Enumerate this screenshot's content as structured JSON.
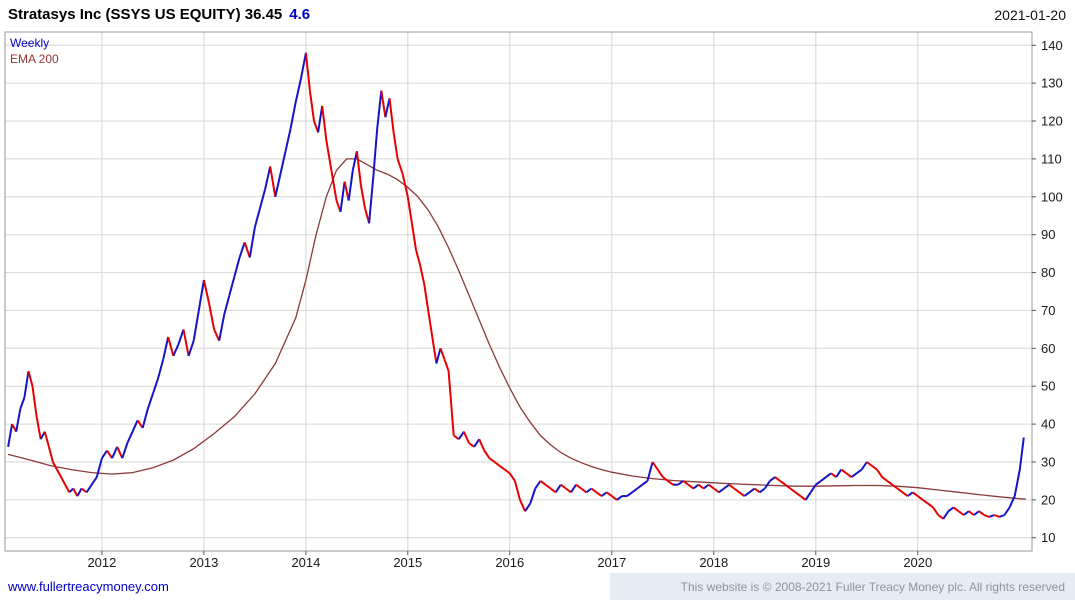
{
  "header": {
    "title": "Stratasys Inc (SSYS US EQUITY) 36.45",
    "change": "4.6",
    "date": "2021-01-20"
  },
  "legend": {
    "weekly": "Weekly",
    "ema": "EMA 200"
  },
  "footer": {
    "link": "www.fullertreacymoney.com",
    "copyright": "This website is © 2008-2021 Fuller Treacy Money plc. All rights reserved"
  },
  "colors": {
    "up": "#1414c8",
    "down": "#e80000",
    "ema": "#8b3a3a",
    "grid": "#d6d6d6",
    "border": "#999999",
    "tick": "#555555",
    "axis_text": "#1a1a1a",
    "legend_weekly": "#0000cc",
    "legend_ema": "#993333",
    "change": "#0000cc",
    "link": "#0000cc",
    "footer_text": "#8f959e",
    "footer_bg": "#e6ecf4"
  },
  "chart_data": {
    "type": "line",
    "title": "Stratasys Inc (SSYS US EQUITY) weekly price with 200-period EMA",
    "last_price": 36.45,
    "change": 4.6,
    "timeframe": "Weekly",
    "xlim": [
      2011.05,
      2021.12
    ],
    "ylim": [
      6.5,
      143.5
    ],
    "x_ticks": [
      2012,
      2013,
      2014,
      2015,
      2016,
      2017,
      2018,
      2019,
      2020
    ],
    "y_ticks": [
      10,
      20,
      30,
      40,
      50,
      60,
      70,
      80,
      90,
      100,
      110,
      120,
      130,
      140
    ],
    "grid": true,
    "legend_position": "top-left",
    "series": [
      {
        "name": "Weekly",
        "x": [
          2011.08,
          2011.12,
          2011.16,
          2011.2,
          2011.24,
          2011.28,
          2011.32,
          2011.36,
          2011.4,
          2011.44,
          2011.48,
          2011.52,
          2011.56,
          2011.6,
          2011.64,
          2011.68,
          2011.72,
          2011.76,
          2011.8,
          2011.85,
          2011.9,
          2011.95,
          2012.0,
          2012.05,
          2012.1,
          2012.15,
          2012.2,
          2012.25,
          2012.3,
          2012.35,
          2012.4,
          2012.45,
          2012.5,
          2012.55,
          2012.6,
          2012.65,
          2012.7,
          2012.75,
          2012.8,
          2012.85,
          2012.9,
          2012.95,
          2013.0,
          2013.05,
          2013.1,
          2013.15,
          2013.2,
          2013.25,
          2013.3,
          2013.35,
          2013.4,
          2013.45,
          2013.5,
          2013.55,
          2013.6,
          2013.65,
          2013.7,
          2013.75,
          2013.8,
          2013.85,
          2013.9,
          2013.95,
          2014.0,
          2014.04,
          2014.08,
          2014.12,
          2014.16,
          2014.2,
          2014.25,
          2014.3,
          2014.34,
          2014.38,
          2014.42,
          2014.46,
          2014.5,
          2014.54,
          2014.58,
          2014.62,
          2014.66,
          2014.7,
          2014.74,
          2014.78,
          2014.82,
          2014.86,
          2014.9,
          2014.95,
          2015.0,
          2015.04,
          2015.08,
          2015.12,
          2015.16,
          2015.2,
          2015.24,
          2015.28,
          2015.32,
          2015.36,
          2015.4,
          2015.45,
          2015.5,
          2015.55,
          2015.6,
          2015.65,
          2015.7,
          2015.75,
          2015.8,
          2015.85,
          2015.9,
          2015.95,
          2016.0,
          2016.05,
          2016.1,
          2016.15,
          2016.2,
          2016.25,
          2016.3,
          2016.35,
          2016.4,
          2016.45,
          2016.5,
          2016.55,
          2016.6,
          2016.65,
          2016.7,
          2016.75,
          2016.8,
          2016.85,
          2016.9,
          2016.95,
          2017.0,
          2017.05,
          2017.1,
          2017.15,
          2017.2,
          2017.25,
          2017.3,
          2017.35,
          2017.4,
          2017.45,
          2017.5,
          2017.55,
          2017.6,
          2017.65,
          2017.7,
          2017.75,
          2017.8,
          2017.85,
          2017.9,
          2017.95,
          2018.0,
          2018.05,
          2018.1,
          2018.15,
          2018.2,
          2018.25,
          2018.3,
          2018.35,
          2018.4,
          2018.45,
          2018.5,
          2018.55,
          2018.6,
          2018.65,
          2018.7,
          2018.75,
          2018.8,
          2018.85,
          2018.9,
          2018.95,
          2019.0,
          2019.05,
          2019.1,
          2019.15,
          2019.2,
          2019.25,
          2019.3,
          2019.35,
          2019.4,
          2019.45,
          2019.5,
          2019.55,
          2019.6,
          2019.65,
          2019.7,
          2019.75,
          2019.8,
          2019.85,
          2019.9,
          2019.95,
          2020.0,
          2020.05,
          2020.1,
          2020.15,
          2020.2,
          2020.25,
          2020.3,
          2020.35,
          2020.4,
          2020.45,
          2020.5,
          2020.55,
          2020.6,
          2020.65,
          2020.7,
          2020.75,
          2020.8,
          2020.85,
          2020.9,
          2020.95,
          2021.0,
          2021.04
        ],
        "y": [
          34,
          40,
          38,
          44,
          47,
          54,
          50,
          42,
          36,
          38,
          34,
          30,
          28,
          26,
          24,
          22,
          23,
          21,
          23,
          22,
          24,
          26,
          31,
          33,
          31,
          34,
          31,
          35,
          38,
          41,
          39,
          44,
          48,
          52,
          57,
          63,
          58,
          61,
          65,
          58,
          62,
          70,
          78,
          72,
          65,
          62,
          69,
          74,
          79,
          84,
          88,
          84,
          92,
          97,
          102,
          108,
          100,
          106,
          112,
          118,
          125,
          131,
          138,
          128,
          120,
          117,
          124,
          115,
          107,
          99,
          96,
          104,
          99,
          107,
          112,
          103,
          97,
          93,
          105,
          118,
          128,
          121,
          126,
          117,
          110,
          106,
          100,
          93,
          86,
          82,
          77,
          70,
          63,
          56,
          60,
          57,
          54,
          37,
          36,
          38,
          35,
          34,
          36,
          33,
          31,
          30,
          29,
          28,
          27,
          25,
          20,
          17,
          19,
          23,
          25,
          24,
          23,
          22,
          24,
          23,
          22,
          24,
          23,
          22,
          23,
          22,
          21,
          22,
          21,
          20,
          21,
          21,
          22,
          23,
          24,
          25,
          30,
          28,
          26,
          25,
          24,
          24,
          25,
          24,
          23,
          24,
          23,
          24,
          23,
          22,
          23,
          24,
          23,
          22,
          21,
          22,
          23,
          22,
          23,
          25,
          26,
          25,
          24,
          23,
          22,
          21,
          20,
          22,
          24,
          25,
          26,
          27,
          26,
          28,
          27,
          26,
          27,
          28,
          30,
          29,
          28,
          26,
          25,
          24,
          23,
          22,
          21,
          22,
          21,
          20,
          19,
          18,
          16,
          15,
          17,
          18,
          17,
          16,
          17,
          16,
          17,
          16,
          15.5,
          16,
          15.5,
          16,
          18,
          21,
          28,
          36.45
        ]
      },
      {
        "name": "EMA 200",
        "x": [
          2011.08,
          2011.3,
          2011.5,
          2011.7,
          2011.9,
          2012.1,
          2012.3,
          2012.5,
          2012.7,
          2012.9,
          2013.1,
          2013.3,
          2013.5,
          2013.7,
          2013.9,
          2014.0,
          2014.1,
          2014.2,
          2014.3,
          2014.4,
          2014.5,
          2014.6,
          2014.7,
          2014.8,
          2014.9,
          2015.0,
          2015.1,
          2015.2,
          2015.3,
          2015.4,
          2015.5,
          2015.6,
          2015.7,
          2015.8,
          2015.9,
          2016.0,
          2016.1,
          2016.2,
          2016.3,
          2016.4,
          2016.5,
          2016.6,
          2016.7,
          2016.8,
          2016.9,
          2017.0,
          2017.2,
          2017.4,
          2017.6,
          2017.8,
          2018.0,
          2018.2,
          2018.4,
          2018.6,
          2018.8,
          2019.0,
          2019.2,
          2019.4,
          2019.6,
          2019.8,
          2020.0,
          2020.2,
          2020.4,
          2020.6,
          2020.8,
          2021.0,
          2021.06
        ],
        "y": [
          32,
          30.5,
          29,
          28,
          27.2,
          26.8,
          27.2,
          28.5,
          30.5,
          33.5,
          37.5,
          42,
          48,
          56,
          68,
          78,
          90,
          100,
          107,
          110,
          110,
          108.5,
          107,
          106,
          104.5,
          102.5,
          100,
          96.5,
          92,
          86.5,
          80.5,
          74,
          67.5,
          61,
          55,
          49.5,
          44.5,
          40.5,
          37,
          34.5,
          32.5,
          31,
          29.8,
          28.8,
          28,
          27.3,
          26.3,
          25.6,
          25.1,
          24.8,
          24.5,
          24.2,
          24,
          23.8,
          23.6,
          23.6,
          23.7,
          23.8,
          23.8,
          23.6,
          23.2,
          22.6,
          22,
          21.4,
          20.8,
          20.3,
          20.2
        ]
      }
    ]
  }
}
